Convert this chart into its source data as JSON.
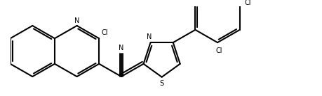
{
  "bg": "#ffffff",
  "lc": "#000000",
  "lw": 1.5,
  "fig_w": 4.6,
  "fig_h": 1.38,
  "dpi": 100,
  "xlim": [
    0,
    10.0
  ],
  "ylim": [
    0,
    3.0
  ]
}
